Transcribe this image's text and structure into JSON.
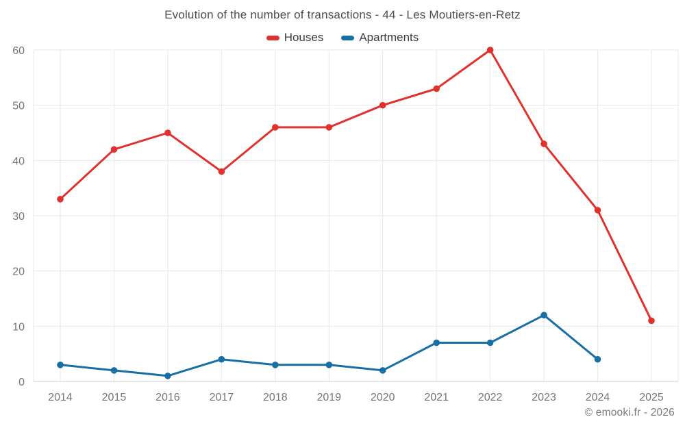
{
  "page": {
    "footer_credit": "© emooki.fr - 2026"
  },
  "colors": {
    "background": "#ffffff",
    "gridline": "#e7e7e7",
    "axis_line": "#cccccc",
    "tick_label": "#757575",
    "title_text": "#4c4c4c",
    "legend_text": "#3d3d3d",
    "footer_text": "#7b7b7b"
  },
  "chart_data": {
    "type": "line",
    "title": "Evolution of the number of transactions - 44 - Les Moutiers-en-Retz",
    "categories": [
      "2014",
      "2015",
      "2016",
      "2017",
      "2018",
      "2019",
      "2020",
      "2021",
      "2022",
      "2023",
      "2024",
      "2025"
    ],
    "series": [
      {
        "name": "Houses",
        "color": "#e0312d",
        "values": [
          33,
          42,
          45,
          38,
          46,
          46,
          50,
          53,
          60,
          43,
          31,
          11
        ]
      },
      {
        "name": "Apartments",
        "color": "#176fa4",
        "values": [
          3,
          2,
          1,
          4,
          3,
          3,
          2,
          7,
          7,
          12,
          4,
          null
        ]
      }
    ],
    "xlabel": "",
    "ylabel": "",
    "ylim": [
      0,
      60
    ],
    "yticks": [
      0,
      10,
      20,
      30,
      40,
      50,
      60
    ],
    "grid": true,
    "legend_position": "top",
    "marker": "circle"
  }
}
